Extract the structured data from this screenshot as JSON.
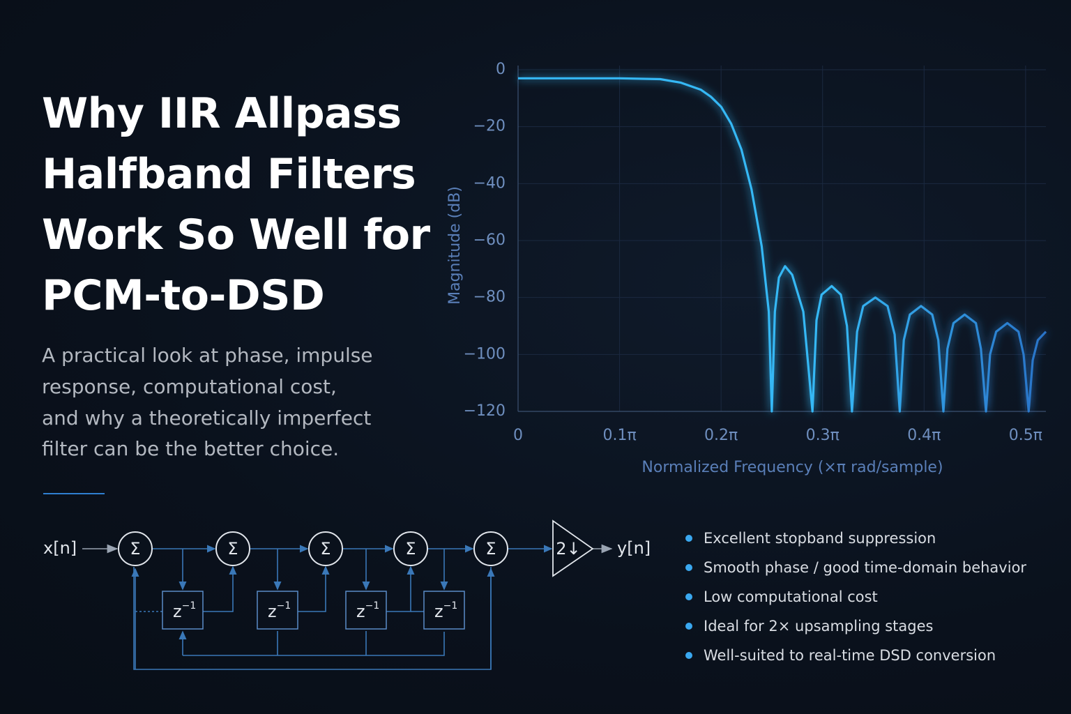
{
  "header": {
    "title_lines": [
      "Why IIR Allpass",
      "Halfband Filters",
      "Work So Well for",
      "PCM-to-DSD"
    ],
    "subtitle_lines": [
      "A practical look at phase, impulse",
      "response, computational cost,",
      "and why a theoretically imperfect",
      "filter can be the better choice."
    ]
  },
  "chart_data": {
    "type": "line",
    "xlabel": "Normalized Frequency (×π rad/sample)",
    "ylabel": "Magnitude (dB)",
    "xlim": [
      0,
      0.52
    ],
    "ylim": [
      -120,
      0
    ],
    "xticks": [
      0,
      {
        "value": 0.1,
        "label": "0.1π"
      },
      {
        "value": 0.2,
        "label": "0.2π"
      },
      {
        "value": 0.3,
        "label": "0.3π"
      },
      {
        "value": 0.4,
        "label": "0.4π"
      },
      {
        "value": 0.5,
        "label": "0.5π"
      }
    ],
    "yticks": [
      0,
      {
        "value": -20,
        "label": "−20"
      },
      {
        "value": -40,
        "label": "−40"
      },
      {
        "value": -60,
        "label": "−60"
      },
      {
        "value": -80,
        "label": "−80"
      },
      {
        "value": -100,
        "label": "−100"
      },
      {
        "value": -120,
        "label": "−120"
      }
    ],
    "grid": true,
    "series": [
      {
        "color": "#35b8f5",
        "x": [
          0,
          0.05,
          0.1,
          0.14,
          0.16,
          0.18,
          0.19,
          0.2,
          0.21,
          0.22,
          0.23,
          0.24,
          0.247,
          0.25,
          0.253,
          0.257,
          0.263,
          0.27,
          0.281,
          0.29,
          0.294,
          0.299,
          0.309,
          0.318,
          0.324,
          0.329,
          0.334,
          0.34,
          0.352,
          0.364,
          0.371,
          0.376,
          0.38,
          0.386,
          0.397,
          0.408,
          0.414,
          0.419,
          0.423,
          0.429,
          0.44,
          0.451,
          0.456,
          0.461,
          0.465,
          0.471,
          0.482,
          0.493,
          0.498,
          0.503,
          0.507,
          0.512,
          0.52
        ],
        "values": [
          -3,
          -3,
          -3,
          -3.3,
          -4.5,
          -7,
          -9.5,
          -13,
          -19,
          -28,
          -42,
          -62,
          -85,
          -120,
          -85,
          -73,
          -69,
          -72,
          -85,
          -120,
          -88,
          -79,
          -76,
          -79,
          -90,
          -120,
          -92,
          -83,
          -80,
          -83,
          -93,
          -120,
          -95,
          -86,
          -83,
          -86,
          -95,
          -120,
          -98,
          -89,
          -86,
          -89,
          -98,
          -120,
          -100,
          -92,
          -89,
          -92,
          -100,
          -120,
          -102,
          -95,
          -92
        ]
      }
    ]
  },
  "diagram": {
    "input": "x[n]",
    "output": "y[n]",
    "adders": [
      "Σ",
      "Σ",
      "Σ",
      "Σ",
      "Σ"
    ],
    "delays": [
      {
        "base": "z",
        "exp": "−1"
      },
      {
        "base": "z",
        "exp": "−1"
      },
      {
        "base": "z",
        "exp": "−1"
      },
      {
        "base": "z",
        "exp": "−1"
      }
    ],
    "decimator": "2↓"
  },
  "bullets": [
    "Excellent stopband suppression",
    "Smooth phase / good time-domain behavior",
    "Low computational cost",
    "Ideal for 2× upsampling stages",
    "Well-suited to real-time DSD conversion"
  ]
}
